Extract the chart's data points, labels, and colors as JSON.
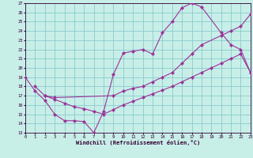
{
  "xlabel": "Windchill (Refroidissement éolien,°C)",
  "bg_color": "#c8eee8",
  "grid_color": "#88cccc",
  "line_color": "#993399",
  "xlim": [
    0,
    23
  ],
  "ylim": [
    13,
    27
  ],
  "xticks": [
    0,
    1,
    2,
    3,
    4,
    5,
    6,
    7,
    8,
    9,
    10,
    11,
    12,
    13,
    14,
    15,
    16,
    17,
    18,
    19,
    20,
    21,
    22,
    23
  ],
  "yticks": [
    13,
    14,
    15,
    16,
    17,
    18,
    19,
    20,
    21,
    22,
    23,
    24,
    25,
    26,
    27
  ],
  "line1_x": [
    0,
    1,
    2,
    3,
    4,
    5,
    6,
    7,
    8,
    9,
    10,
    11,
    12,
    13,
    14,
    15,
    16,
    17,
    18,
    20,
    21,
    22,
    23
  ],
  "line1_y": [
    19,
    17.5,
    16.5,
    15.0,
    14.3,
    14.3,
    14.2,
    13.0,
    15.3,
    19.3,
    21.6,
    21.8,
    22.0,
    21.5,
    23.8,
    25.0,
    26.5,
    27.0,
    26.6,
    23.8,
    22.5,
    22.0,
    19.5
  ],
  "line2_x": [
    1,
    2,
    3,
    9,
    10,
    11,
    12,
    13,
    14,
    15,
    16,
    17,
    18,
    20,
    21,
    22,
    23
  ],
  "line2_y": [
    18.0,
    17.0,
    16.8,
    17.0,
    17.5,
    17.8,
    18.0,
    18.5,
    19.0,
    19.5,
    20.5,
    21.5,
    22.5,
    23.5,
    24.0,
    24.5,
    25.8
  ],
  "line3_x": [
    2,
    3,
    4,
    5,
    6,
    7,
    8,
    9,
    10,
    11,
    12,
    13,
    14,
    15,
    16,
    17,
    18,
    19,
    20,
    21,
    22,
    23
  ],
  "line3_y": [
    17.0,
    16.6,
    16.2,
    15.8,
    15.6,
    15.3,
    15.0,
    15.5,
    16.0,
    16.4,
    16.8,
    17.2,
    17.6,
    18.0,
    18.5,
    19.0,
    19.5,
    20.0,
    20.5,
    21.0,
    21.5,
    19.5
  ]
}
